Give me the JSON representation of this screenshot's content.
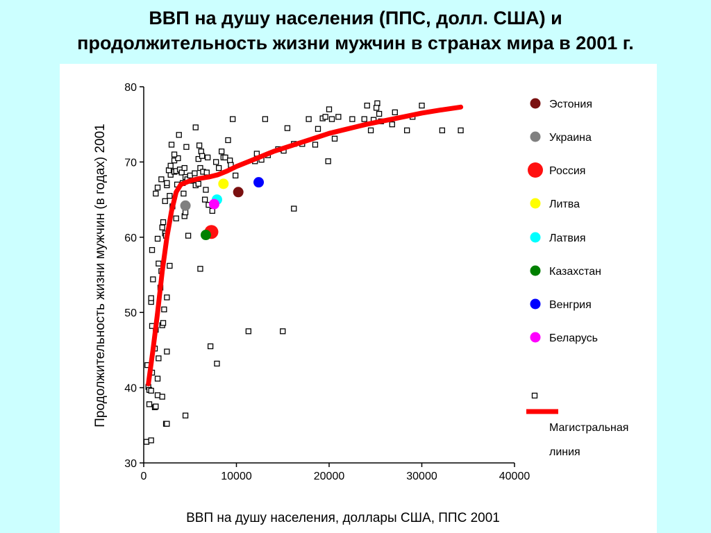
{
  "title": {
    "line1": "ВВП на душу населения (ППС, долл. США) и",
    "line2": "продолжительность жизни мужчин в странах мира в 2001 г."
  },
  "chart_data": {
    "type": "scatter",
    "title": "ВВП на душу населения (ППС, долл. США) и продолжительность жизни мужчин в странах мира в 2001 г.",
    "xlabel": "ВВП на душу населения, доллары США, ППС 2001",
    "ylabel": "Продолжительность жизни мужчин (в годах) 2001",
    "xlim": [
      0,
      40000
    ],
    "ylim": [
      30,
      80
    ],
    "xticks": [
      "0",
      "10000",
      "20000",
      "30000",
      "40000"
    ],
    "yticks": [
      "30",
      "40",
      "50",
      "60",
      "70",
      "80"
    ],
    "grid": false,
    "legend_position": "right",
    "background_points": [
      [
        300,
        32.8
      ],
      [
        800,
        33
      ],
      [
        600,
        37.8
      ],
      [
        1200,
        37.4
      ],
      [
        1300,
        37.5
      ],
      [
        1500,
        39
      ],
      [
        2400,
        35.2
      ],
      [
        2500,
        35.2
      ],
      [
        4500,
        36.3
      ],
      [
        500,
        40.1
      ],
      [
        600,
        39.7
      ],
      [
        800,
        39.6
      ],
      [
        1500,
        41.2
      ],
      [
        2000,
        38.8
      ],
      [
        900,
        42
      ],
      [
        1600,
        43.9
      ],
      [
        400,
        43
      ],
      [
        2500,
        44.8
      ],
      [
        1200,
        45.2
      ],
      [
        1300,
        47.7
      ],
      [
        900,
        48.2
      ],
      [
        2000,
        48.3
      ],
      [
        2100,
        48.6
      ],
      [
        2200,
        50.4
      ],
      [
        800,
        51.4
      ],
      [
        800,
        51.9
      ],
      [
        1000,
        54.4
      ],
      [
        2500,
        52
      ],
      [
        1800,
        53.3
      ],
      [
        2800,
        56.2
      ],
      [
        1900,
        55.5
      ],
      [
        1600,
        56.5
      ],
      [
        900,
        58.3
      ],
      [
        1500,
        59.8
      ],
      [
        2300,
        60.5
      ],
      [
        2000,
        61.3
      ],
      [
        2400,
        60.2
      ],
      [
        2100,
        62
      ],
      [
        3500,
        62.5
      ],
      [
        4800,
        60.2
      ],
      [
        4400,
        62.8
      ],
      [
        4500,
        63.3
      ],
      [
        1300,
        65.8
      ],
      [
        1500,
        66.6
      ],
      [
        2500,
        66.9
      ],
      [
        2800,
        65.5
      ],
      [
        2300,
        64.8
      ],
      [
        3100,
        64.1
      ],
      [
        2500,
        67.2
      ],
      [
        1900,
        67.7
      ],
      [
        2900,
        68.3
      ],
      [
        3300,
        68.7
      ],
      [
        3600,
        67
      ],
      [
        3500,
        68.8
      ],
      [
        2700,
        68.9
      ],
      [
        2900,
        69.5
      ],
      [
        3300,
        70.2
      ],
      [
        3700,
        70.5
      ],
      [
        3300,
        71
      ],
      [
        3000,
        72.3
      ],
      [
        4600,
        72
      ],
      [
        3800,
        73.6
      ],
      [
        3900,
        69
      ],
      [
        4100,
        68.6
      ],
      [
        4200,
        67.2
      ],
      [
        4400,
        69.2
      ],
      [
        4500,
        68
      ],
      [
        4700,
        67.7
      ],
      [
        5000,
        68.2
      ],
      [
        5200,
        67.5
      ],
      [
        5500,
        68.5
      ],
      [
        5600,
        66.9
      ],
      [
        5900,
        67.1
      ],
      [
        5900,
        70.4
      ],
      [
        6000,
        72.2
      ],
      [
        6200,
        71.4
      ],
      [
        6300,
        70.8
      ],
      [
        6100,
        69.2
      ],
      [
        6400,
        68.7
      ],
      [
        6600,
        65
      ],
      [
        6700,
        66.3
      ],
      [
        5600,
        74.6
      ],
      [
        6900,
        70.6
      ],
      [
        7000,
        64.3
      ],
      [
        7400,
        63.5
      ],
      [
        7800,
        70
      ],
      [
        8100,
        69.2
      ],
      [
        8400,
        71.4
      ],
      [
        8600,
        70.6
      ],
      [
        8800,
        70.6
      ],
      [
        9100,
        72.9
      ],
      [
        9300,
        70.2
      ],
      [
        9400,
        69.6
      ],
      [
        9600,
        75.7
      ],
      [
        9900,
        68.2
      ],
      [
        6100,
        55.8
      ],
      [
        7200,
        45.5
      ],
      [
        7900,
        43.2
      ],
      [
        11300,
        47.5
      ],
      [
        12000,
        70.1
      ],
      [
        12200,
        71.1
      ],
      [
        12700,
        70.3
      ],
      [
        13400,
        70.9
      ],
      [
        13100,
        75.7
      ],
      [
        14500,
        71.7
      ],
      [
        15100,
        71.5
      ],
      [
        15500,
        74.5
      ],
      [
        16200,
        72.4
      ],
      [
        16200,
        63.8
      ],
      [
        17100,
        72.4
      ],
      [
        17800,
        75.7
      ],
      [
        18500,
        72.3
      ],
      [
        18800,
        74.4
      ],
      [
        19300,
        75.8
      ],
      [
        19600,
        76
      ],
      [
        19900,
        70.1
      ],
      [
        20000,
        77
      ],
      [
        20300,
        75.7
      ],
      [
        20600,
        73.1
      ],
      [
        21000,
        76
      ],
      [
        22500,
        75.7
      ],
      [
        23800,
        75.7
      ],
      [
        24100,
        77.5
      ],
      [
        24500,
        74.2
      ],
      [
        24800,
        75.6
      ],
      [
        25200,
        77.8
      ],
      [
        25100,
        77.2
      ],
      [
        25400,
        76.4
      ],
      [
        25600,
        75.4
      ],
      [
        26800,
        75
      ],
      [
        27100,
        76.6
      ],
      [
        28400,
        74.2
      ],
      [
        29000,
        76
      ],
      [
        30000,
        77.5
      ],
      [
        32200,
        74.2
      ],
      [
        34200,
        74.2
      ],
      [
        15000,
        47.5
      ],
      [
        4300,
        65.8
      ],
      [
        6800,
        68.6
      ]
    ],
    "highlighted_countries": [
      {
        "name": "Эстония",
        "x": 10200,
        "y": 66,
        "color": "#7a1010"
      },
      {
        "name": "Украина",
        "x": 4500,
        "y": 64.2,
        "color": "#808080"
      },
      {
        "name": "Россия",
        "x": 7300,
        "y": 60.7,
        "color": "#ff1010"
      },
      {
        "name": "Литва",
        "x": 8600,
        "y": 67.1,
        "color": "#ffff00"
      },
      {
        "name": "Латвия",
        "x": 7900,
        "y": 65,
        "color": "#00ffff"
      },
      {
        "name": "Казахстан",
        "x": 6700,
        "y": 60.3,
        "color": "#008000"
      },
      {
        "name": "Венгрия",
        "x": 12400,
        "y": 67.3,
        "color": "#0000ff"
      },
      {
        "name": "Беларусь",
        "x": 7600,
        "y": 64.4,
        "color": "#ff00ff"
      }
    ],
    "trend_line": {
      "name": "Магистральная линия",
      "color": "#ff0000",
      "points": [
        [
          500,
          40.5
        ],
        [
          1000,
          45
        ],
        [
          1500,
          50
        ],
        [
          2000,
          55.5
        ],
        [
          2500,
          60
        ],
        [
          3000,
          63.5
        ],
        [
          3500,
          66
        ],
        [
          4000,
          67
        ],
        [
          5000,
          67.5
        ],
        [
          6000,
          67.8
        ],
        [
          7000,
          68
        ],
        [
          8000,
          68.3
        ],
        [
          9000,
          68.8
        ],
        [
          10000,
          69.4
        ],
        [
          12000,
          70.4
        ],
        [
          14000,
          71.4
        ],
        [
          16000,
          72.2
        ],
        [
          18000,
          73
        ],
        [
          20000,
          73.8
        ],
        [
          22000,
          74.4
        ],
        [
          24000,
          75
        ],
        [
          26000,
          75.5
        ],
        [
          28000,
          76
        ],
        [
          30000,
          76.5
        ],
        [
          32000,
          76.9
        ],
        [
          34200,
          77.3
        ]
      ]
    },
    "legend": {
      "entries": [
        "Эстония",
        "Украина",
        "Россия",
        "Литва",
        "Латвия",
        "Казахстан",
        "Венгрия",
        "Беларусь"
      ],
      "line_label_1": "Магистральная",
      "line_label_2": "линия"
    }
  }
}
